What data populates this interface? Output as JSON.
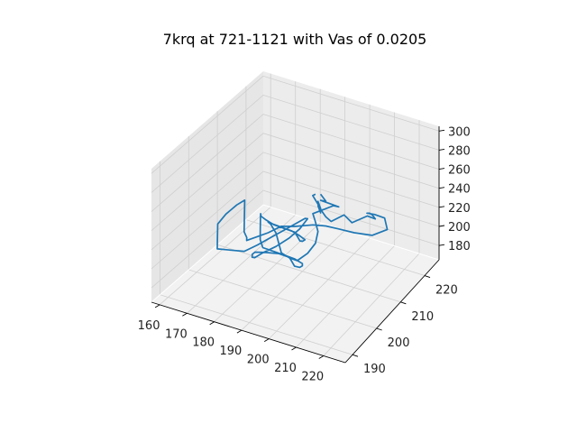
{
  "chart_data": {
    "type": "line",
    "projection": "3d",
    "title": "7krq at 721-1121 with Vas of 0.0205",
    "xlabel": "",
    "ylabel": "",
    "zlabel": "",
    "xlim": [
      157,
      228
    ],
    "ylim": [
      187,
      226
    ],
    "zlim": [
      165,
      305
    ],
    "x_ticks": [
      "160",
      "170",
      "180",
      "190",
      "200",
      "210",
      "220"
    ],
    "y_ticks": [
      "190",
      "200",
      "210",
      "220"
    ],
    "z_ticks": [
      "180",
      "200",
      "220",
      "240",
      "260",
      "280",
      "300"
    ],
    "grid": true,
    "legend": "none",
    "series_color": "#1f77b4",
    "pane_colors": {
      "floor": "#f2f2f2",
      "left_wall": "#e6e6e6",
      "back_wall": "#ececec"
    },
    "series": [
      {
        "points": [
          [
            200,
            205,
            268
          ],
          [
            198,
            206,
            262
          ],
          [
            203,
            204,
            258
          ],
          [
            199,
            207,
            254
          ],
          [
            202,
            205,
            250
          ],
          [
            198,
            208,
            246
          ],
          [
            203,
            206,
            244
          ],
          [
            207,
            204,
            248
          ],
          [
            210,
            206,
            252
          ],
          [
            214,
            205,
            250
          ],
          [
            218,
            207,
            255
          ],
          [
            222,
            206,
            258
          ],
          [
            219,
            208,
            254
          ],
          [
            216,
            210,
            248
          ],
          [
            213,
            212,
            240
          ],
          [
            214,
            214,
            234
          ],
          [
            217,
            215,
            230
          ],
          [
            220,
            213,
            226
          ],
          [
            216,
            211,
            222
          ],
          [
            211,
            209,
            226
          ],
          [
            207,
            207,
            232
          ],
          [
            204,
            205,
            238
          ],
          [
            201,
            203,
            242
          ],
          [
            197,
            200,
            245
          ],
          [
            194,
            198,
            248
          ],
          [
            191,
            196,
            244
          ],
          [
            188,
            195,
            240
          ],
          [
            185,
            194,
            236
          ],
          [
            183,
            196,
            232
          ],
          [
            180,
            198,
            230
          ],
          [
            178,
            200,
            234
          ],
          [
            176,
            202,
            238
          ],
          [
            174,
            204,
            242
          ],
          [
            172,
            203,
            238
          ],
          [
            170,
            201,
            232
          ],
          [
            169,
            199,
            226
          ],
          [
            171,
            197,
            220
          ],
          [
            173,
            195,
            214
          ],
          [
            176,
            197,
            210
          ],
          [
            179,
            199,
            206
          ],
          [
            182,
            201,
            210
          ],
          [
            185,
            203,
            215
          ],
          [
            188,
            205,
            220
          ],
          [
            191,
            206,
            226
          ],
          [
            194,
            207,
            232
          ],
          [
            196,
            206,
            236
          ],
          [
            195,
            204,
            230
          ],
          [
            193,
            202,
            224
          ],
          [
            190,
            200,
            218
          ],
          [
            187,
            198,
            214
          ],
          [
            185,
            197,
            210
          ],
          [
            183,
            198,
            206
          ],
          [
            181,
            200,
            202
          ],
          [
            180,
            202,
            198
          ],
          [
            182,
            204,
            194
          ],
          [
            185,
            206,
            190
          ],
          [
            188,
            207,
            186
          ],
          [
            191,
            206,
            182
          ],
          [
            194,
            205,
            186
          ],
          [
            196,
            204,
            192
          ],
          [
            197,
            203,
            198
          ],
          [
            195,
            202,
            204
          ],
          [
            192,
            201,
            208
          ],
          [
            189,
            200,
            212
          ],
          [
            186,
            199,
            216
          ],
          [
            184,
            200,
            220
          ],
          [
            182,
            202,
            224
          ],
          [
            180,
            204,
            228
          ],
          [
            178,
            206,
            226
          ],
          [
            177,
            207,
            220
          ],
          [
            178,
            208,
            214
          ],
          [
            180,
            209,
            208
          ],
          [
            183,
            210,
            204
          ],
          [
            186,
            211,
            200
          ],
          [
            189,
            210,
            196
          ],
          [
            191,
            209,
            200
          ],
          [
            193,
            208,
            206
          ],
          [
            192,
            207,
            212
          ],
          [
            190,
            206,
            218
          ],
          [
            188,
            205,
            222
          ],
          [
            186,
            204,
            226
          ],
          [
            184,
            203,
            230
          ],
          [
            185,
            202,
            234
          ],
          [
            187,
            201,
            236
          ],
          [
            190,
            200,
            232
          ],
          [
            192,
            199,
            226
          ],
          [
            194,
            198,
            220
          ],
          [
            196,
            199,
            214
          ],
          [
            198,
            200,
            210
          ],
          [
            200,
            202,
            214
          ],
          [
            201,
            204,
            220
          ],
          [
            200,
            206,
            226
          ],
          [
            198,
            207,
            232
          ],
          [
            196,
            208,
            236
          ],
          [
            199,
            209,
            240
          ],
          [
            202,
            210,
            244
          ],
          [
            205,
            209,
            248
          ],
          [
            203,
            208,
            252
          ],
          [
            200,
            207,
            256
          ],
          [
            202,
            206,
            260
          ],
          [
            204,
            205,
            264
          ],
          [
            201,
            206,
            266
          ]
        ]
      }
    ]
  }
}
